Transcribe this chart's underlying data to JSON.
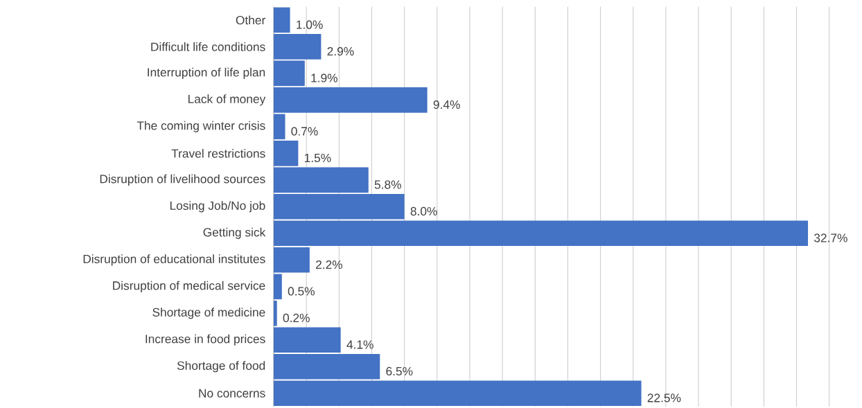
{
  "chart_data": {
    "type": "bar",
    "orientation": "horizontal",
    "categories": [
      "Other",
      "Difficult life conditions",
      "Interruption of life plan",
      "Lack of money",
      "The coming winter crisis",
      "Travel restrictions",
      "Disruption of livelihood sources",
      "Losing Job/No job",
      "Getting sick",
      "Disruption of educational institutes",
      "Disruption of medical service",
      "Shortage of medicine",
      "Increase in food prices",
      "Shortage of food",
      "No concerns"
    ],
    "values": [
      1.0,
      2.9,
      1.9,
      9.4,
      0.7,
      1.5,
      5.8,
      8.0,
      32.7,
      2.2,
      0.5,
      0.2,
      4.1,
      6.5,
      22.5
    ],
    "value_labels": [
      "1.0%",
      "2.9%",
      "1.9%",
      "9.4%",
      "0.7%",
      "1.5%",
      "5.8%",
      "8.0%",
      "32.7%",
      "2.2%",
      "0.5%",
      "0.2%",
      "4.1%",
      "6.5%",
      "22.5%"
    ],
    "color": "#4472c4",
    "grid": "x",
    "tick_labels": "y"
  }
}
